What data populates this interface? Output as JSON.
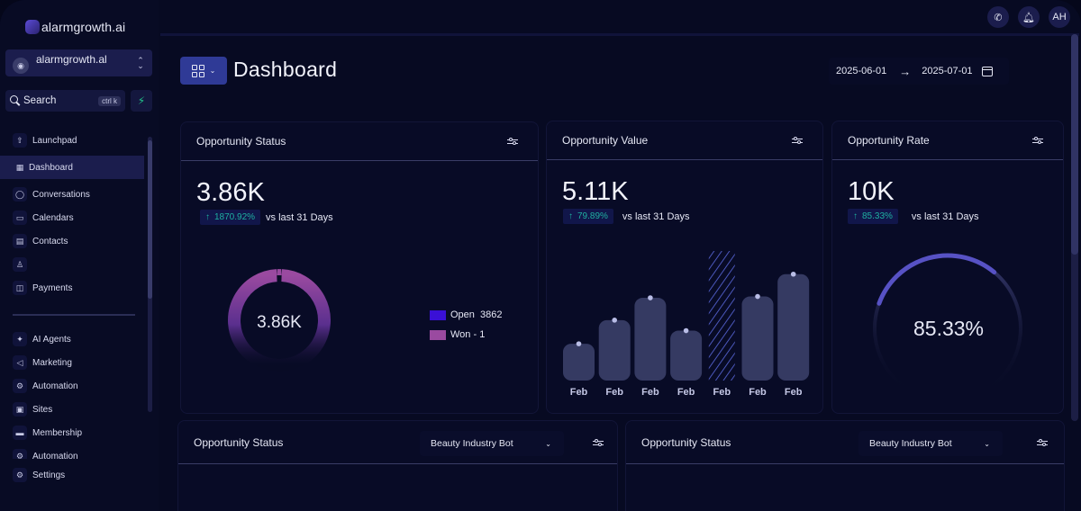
{
  "brand": {
    "name": "alarmgrowth.ai"
  },
  "account": {
    "name": "alarmgrowth.al",
    "avatar_icon": "user-circle-icon"
  },
  "search": {
    "label": "Search",
    "shortcut": "ctrl k"
  },
  "quick_action_icon": "bolt-icon",
  "sidebar": {
    "items": [
      {
        "label": "Launchpad",
        "icon": "rocket-icon"
      },
      {
        "label": "Dashboard",
        "icon": "grid-icon",
        "active": true
      },
      {
        "label": "Conversations",
        "icon": "chat-icon"
      },
      {
        "label": "Calendars",
        "icon": "calendar-icon"
      },
      {
        "label": "Contacts",
        "icon": "contacts-icon"
      },
      {
        "label": "",
        "icon": "person-icon"
      },
      {
        "label": "Payments",
        "icon": "payments-icon"
      }
    ],
    "items2": [
      {
        "label": "AI Agents",
        "icon": "ai-icon"
      },
      {
        "label": "Marketing",
        "icon": "send-icon"
      },
      {
        "label": "Automation",
        "icon": "gear-icon"
      },
      {
        "label": "Sites",
        "icon": "sites-icon"
      },
      {
        "label": "Membership",
        "icon": "monitor-icon"
      },
      {
        "label": "Automation",
        "icon": "gear-icon"
      }
    ],
    "settings": {
      "label": "Settings",
      "icon": "settings-icon"
    }
  },
  "topbar": {
    "phone_icon": "phone-icon",
    "bell_icon": "bell-icon",
    "user_initials": "AH"
  },
  "header": {
    "title": "Dashboard",
    "date_from": "2025-06-01",
    "date_arrow": "→",
    "date_to": "2025-07-01"
  },
  "cards": {
    "status": {
      "title": "Opportunity Status",
      "value": "3.86K",
      "trend": "1870.92%",
      "trend_arrow": "↑",
      "compare": "vs last 31 Days",
      "center": "3.86K",
      "legend": [
        {
          "label": "Open  3862",
          "color": "#3a10d6"
        },
        {
          "label": "Won - 1",
          "color": "#9a4aa0"
        }
      ]
    },
    "value": {
      "title": "Opportunity Value",
      "value": "5.11K",
      "trend": "79.89%",
      "trend_arrow": "↑",
      "compare": "vs last 31 Days"
    },
    "rate": {
      "title": "Opportunity Rate",
      "value": "10K",
      "trend": "85.33%",
      "trend_arrow": "↑",
      "compare": "vs last 31 Days",
      "gauge_label": "85.33%",
      "gauge_percent": 85.33
    },
    "bottom_left": {
      "title": "Opportunity Status",
      "select": "Beauty Industry Bot"
    },
    "bottom_right": {
      "title": "Opportunity Status",
      "select": "Beauty Industry Bot"
    }
  },
  "chart_data": [
    {
      "type": "pie",
      "title": "Opportunity Status",
      "categories": [
        "Open",
        "Won"
      ],
      "values": [
        3862,
        1
      ],
      "center_label": "3.86K"
    },
    {
      "type": "bar",
      "title": "Opportunity Value",
      "categories": [
        "Feb",
        "Feb",
        "Feb",
        "Feb",
        "Feb",
        "Feb",
        "Feb"
      ],
      "values": [
        28,
        46,
        63,
        38,
        100,
        64,
        81
      ],
      "highlighted_index": 4,
      "ylim": [
        0,
        100
      ]
    }
  ]
}
